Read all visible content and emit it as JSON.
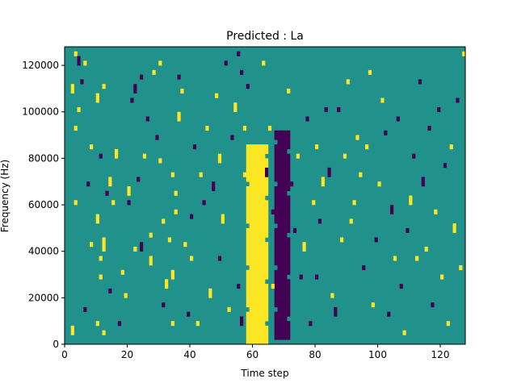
{
  "chart_data": {
    "type": "heatmap",
    "title": "Predicted : La",
    "xlabel": "Time step",
    "ylabel": "Frequency (Hz)",
    "xlim": [
      0,
      128
    ],
    "ylim": [
      0,
      128000
    ],
    "x_ticks": [
      0,
      20,
      40,
      60,
      80,
      100,
      120
    ],
    "y_ticks": [
      0,
      20000,
      40000,
      60000,
      80000,
      100000,
      120000
    ],
    "grid": false,
    "legend": "none",
    "n_time_steps": 128,
    "n_freq_bins": 64,
    "levels": {
      "low": -1,
      "mid": 0,
      "high": 1
    },
    "colors": {
      "low": "#440154",
      "mid": "#21918c",
      "high": "#fde725"
    },
    "dense_bands": [
      {
        "level": 1,
        "x_start": 58,
        "x_end": 64,
        "freq_start": 0,
        "freq_end": 84000,
        "description": "bright band"
      },
      {
        "level": -1,
        "x_start": 67,
        "x_end": 71,
        "freq_start": 2000,
        "freq_end": 90000,
        "description": "dark band"
      }
    ],
    "points": [
      [
        2,
        2,
        1
      ],
      [
        3,
        62,
        1
      ],
      [
        4,
        60,
        -1
      ],
      [
        4,
        50,
        1
      ],
      [
        3,
        30,
        1
      ],
      [
        3,
        46,
        1
      ],
      [
        2,
        54,
        1
      ],
      [
        5,
        56,
        -1
      ],
      [
        6,
        7,
        -1
      ],
      [
        6,
        60,
        1
      ],
      [
        7,
        34,
        -1
      ],
      [
        8,
        21,
        1
      ],
      [
        8,
        42,
        1
      ],
      [
        10,
        4,
        1
      ],
      [
        10,
        26,
        1
      ],
      [
        10,
        52,
        1
      ],
      [
        10,
        53,
        1
      ],
      [
        11,
        14,
        1
      ],
      [
        11,
        18,
        1
      ],
      [
        11,
        40,
        -1
      ],
      [
        12,
        2,
        1
      ],
      [
        12,
        20,
        1
      ],
      [
        12,
        22,
        1
      ],
      [
        12,
        55,
        1
      ],
      [
        13,
        32,
        -1
      ],
      [
        14,
        11,
        -1
      ],
      [
        14,
        34,
        1
      ],
      [
        15,
        30,
        1
      ],
      [
        16,
        40,
        1
      ],
      [
        17,
        4,
        -1
      ],
      [
        18,
        15,
        1
      ],
      [
        19,
        10,
        1
      ],
      [
        20,
        30,
        -1
      ],
      [
        20,
        32,
        1
      ],
      [
        21,
        52,
        -1
      ],
      [
        22,
        54,
        -1
      ],
      [
        22,
        20,
        1
      ],
      [
        23,
        35,
        -1
      ],
      [
        24,
        20,
        -1
      ],
      [
        24,
        57,
        -1
      ],
      [
        25,
        40,
        1
      ],
      [
        26,
        48,
        -1
      ],
      [
        27,
        17,
        1
      ],
      [
        27,
        23,
        1
      ],
      [
        28,
        58,
        1
      ],
      [
        29,
        44,
        -1
      ],
      [
        30,
        60,
        1
      ],
      [
        30,
        39,
        1
      ],
      [
        31,
        26,
        1
      ],
      [
        31,
        8,
        -1
      ],
      [
        32,
        12,
        1
      ],
      [
        33,
        22,
        1
      ],
      [
        34,
        4,
        1
      ],
      [
        34,
        14,
        1
      ],
      [
        34,
        36,
        1
      ],
      [
        35,
        28,
        1
      ],
      [
        35,
        32,
        1
      ],
      [
        36,
        48,
        1
      ],
      [
        36,
        57,
        -1
      ],
      [
        37,
        54,
        1
      ],
      [
        38,
        21,
        1
      ],
      [
        39,
        6,
        -1
      ],
      [
        40,
        27,
        -1
      ],
      [
        40,
        18,
        1
      ],
      [
        41,
        42,
        -1
      ],
      [
        42,
        4,
        1
      ],
      [
        43,
        36,
        1
      ],
      [
        44,
        30,
        -1
      ],
      [
        45,
        46,
        1
      ],
      [
        46,
        10,
        1
      ],
      [
        47,
        33,
        -1
      ],
      [
        48,
        53,
        1
      ],
      [
        49,
        18,
        -1
      ],
      [
        49,
        39,
        1
      ],
      [
        50,
        26,
        1
      ],
      [
        51,
        60,
        -1
      ],
      [
        52,
        7,
        1
      ],
      [
        53,
        44,
        -1
      ],
      [
        54,
        50,
        1
      ],
      [
        55,
        12,
        -1
      ],
      [
        56,
        4,
        -1
      ],
      [
        57,
        36,
        1
      ],
      [
        57,
        46,
        1
      ],
      [
        58,
        55,
        -1
      ],
      [
        59,
        21,
        1
      ],
      [
        55,
        62,
        -1
      ],
      [
        56,
        58,
        -1
      ],
      [
        63,
        60,
        1
      ],
      [
        64,
        36,
        -1
      ],
      [
        65,
        46,
        1
      ],
      [
        66,
        12,
        1
      ],
      [
        66,
        28,
        -1
      ],
      [
        71,
        54,
        1
      ],
      [
        72,
        34,
        -1
      ],
      [
        73,
        24,
        -1
      ],
      [
        74,
        40,
        1
      ],
      [
        75,
        14,
        -1
      ],
      [
        76,
        20,
        1
      ],
      [
        77,
        48,
        -1
      ],
      [
        78,
        4,
        -1
      ],
      [
        79,
        30,
        1
      ],
      [
        80,
        42,
        1
      ],
      [
        80,
        14,
        -1
      ],
      [
        81,
        26,
        -1
      ],
      [
        82,
        34,
        1
      ],
      [
        83,
        50,
        -1
      ],
      [
        84,
        36,
        -1
      ],
      [
        85,
        10,
        1
      ],
      [
        86,
        6,
        -1
      ],
      [
        87,
        50,
        -1
      ],
      [
        88,
        22,
        1
      ],
      [
        89,
        40,
        1
      ],
      [
        90,
        56,
        1
      ],
      [
        91,
        26,
        1
      ],
      [
        92,
        30,
        1
      ],
      [
        93,
        44,
        1
      ],
      [
        94,
        36,
        1
      ],
      [
        95,
        16,
        -1
      ],
      [
        96,
        42,
        1
      ],
      [
        97,
        58,
        1
      ],
      [
        98,
        8,
        1
      ],
      [
        99,
        22,
        -1
      ],
      [
        100,
        34,
        1
      ],
      [
        101,
        52,
        1
      ],
      [
        102,
        45,
        -1
      ],
      [
        103,
        6,
        -1
      ],
      [
        104,
        28,
        -1
      ],
      [
        105,
        18,
        1
      ],
      [
        106,
        48,
        -1
      ],
      [
        107,
        12,
        -1
      ],
      [
        108,
        2,
        1
      ],
      [
        109,
        24,
        -1
      ],
      [
        110,
        30,
        1
      ],
      [
        111,
        40,
        -1
      ],
      [
        112,
        18,
        1
      ],
      [
        113,
        56,
        -1
      ],
      [
        114,
        34,
        -1
      ],
      [
        115,
        20,
        1
      ],
      [
        116,
        46,
        -1
      ],
      [
        117,
        8,
        -1
      ],
      [
        118,
        28,
        1
      ],
      [
        119,
        50,
        -1
      ],
      [
        120,
        14,
        1
      ],
      [
        121,
        38,
        -1
      ],
      [
        122,
        4,
        1
      ],
      [
        123,
        42,
        1
      ],
      [
        124,
        24,
        1
      ],
      [
        125,
        52,
        -1
      ],
      [
        126,
        16,
        1
      ],
      [
        127,
        62,
        1
      ]
    ]
  }
}
